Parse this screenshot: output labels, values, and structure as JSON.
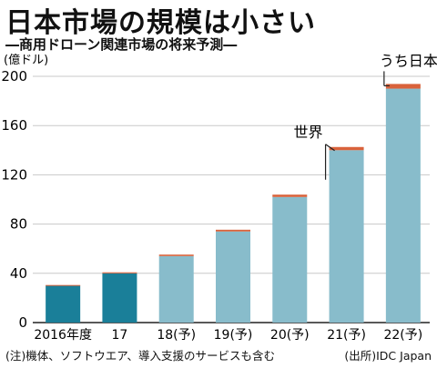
{
  "header": {
    "title": "日本市場の規模は小さい",
    "subtitle": "―商用ドローン関連市場の将来予測―"
  },
  "footer": {
    "note": "(注)機体、ソフトウエア、導入支援のサービスも含む",
    "source": "(出所)IDC Japan"
  },
  "colors": {
    "actual": "#1a7f99",
    "forecast": "#88bccb",
    "japan": "#d9623b"
  },
  "chart_data": {
    "type": "bar",
    "title": "日本市場の規模は小さい",
    "subtitle": "―商用ドローン関連市場の将来予測―",
    "ylabel": "(億ドル)",
    "ylim": [
      0,
      200
    ],
    "yticks": [
      0,
      40,
      80,
      120,
      160,
      200
    ],
    "grid": true,
    "categories": [
      "2016年度",
      "17",
      "18(予)",
      "19(予)",
      "20(予)",
      "21(予)",
      "22(予)"
    ],
    "forecast": [
      false,
      false,
      true,
      true,
      true,
      true,
      true
    ],
    "series": [
      {
        "name": "世界",
        "values": [
          30,
          40,
          54,
          74,
          102,
          140,
          190
        ]
      },
      {
        "name": "うち日本",
        "values": [
          0.5,
          0.8,
          1.2,
          1.4,
          1.9,
          2.6,
          3.8
        ]
      }
    ],
    "annotations": [
      {
        "text": "世界",
        "category": "21(予)"
      },
      {
        "text": "うち日本",
        "category": "22(予)"
      }
    ]
  }
}
